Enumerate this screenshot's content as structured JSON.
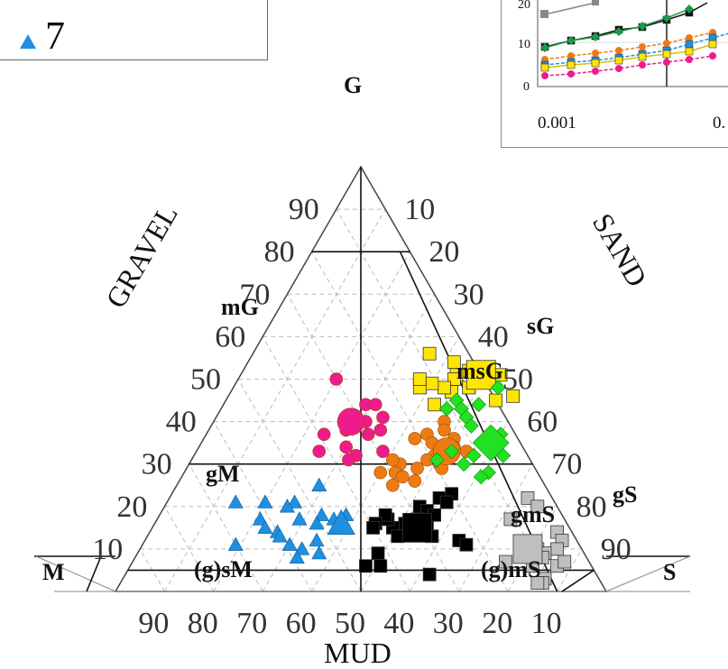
{
  "legend": {
    "label": "7",
    "marker_color": "#1f8fe0"
  },
  "inset": {
    "y_ticks": [
      "20",
      "10",
      "0"
    ],
    "x_ticks": [
      "0.001",
      "0."
    ]
  },
  "chart_data": {
    "type": "scatter",
    "subtype": "ternary (Folk sediment classification)",
    "axes": {
      "gravel": {
        "label": "GRAVEL",
        "ticks": [
          "10",
          "20",
          "30",
          "40",
          "50",
          "60",
          "70",
          "80",
          "90"
        ]
      },
      "sand": {
        "label": "SAND",
        "ticks": [
          "10",
          "20",
          "30",
          "40",
          "50",
          "60",
          "70",
          "80",
          "90"
        ]
      },
      "mud": {
        "label": "MUD",
        "ticks": [
          "90",
          "80",
          "70",
          "60",
          "50",
          "40",
          "30",
          "20",
          "10"
        ]
      }
    },
    "zones": [
      "G",
      "mG",
      "sG",
      "msG",
      "gM",
      "gS",
      "gmS",
      "(g)sM",
      "(g)mS",
      "M",
      "S"
    ],
    "grid": true,
    "colors": {
      "yellow": "#ffe600",
      "magenta": "#ee1b8c",
      "orange": "#ee7b12",
      "green": "#22e022",
      "black": "#000000",
      "blue": "#1f8fe0",
      "gray": "#bfbfbf"
    },
    "series": [
      {
        "marker": "square",
        "color": "yellow",
        "points": [
          [
            54,
            42,
            false
          ],
          [
            45,
            55,
            false
          ],
          [
            46,
            58,
            false
          ],
          [
            56,
            36,
            false
          ],
          [
            48,
            48,
            false
          ],
          [
            51,
            53,
            false
          ],
          [
            52,
            46,
            false
          ],
          [
            51,
            49,
            true
          ],
          [
            51,
            44,
            false
          ],
          [
            47,
            45,
            false
          ],
          [
            50,
            44,
            false
          ],
          [
            48,
            43,
            false
          ],
          [
            49,
            40,
            false
          ],
          [
            48,
            38,
            false
          ],
          [
            50,
            37,
            false
          ],
          [
            44,
            43,
            false
          ]
        ]
      },
      {
        "marker": "circle",
        "color": "magenta",
        "points": [
          [
            50,
            20,
            false
          ],
          [
            44,
            29,
            false
          ],
          [
            40,
            31,
            false
          ],
          [
            44,
            31,
            false
          ],
          [
            38,
            35,
            false
          ],
          [
            41,
            34,
            false
          ],
          [
            37,
            33,
            false
          ],
          [
            38,
            28,
            false
          ],
          [
            37,
            24,
            false
          ],
          [
            34,
            30,
            false
          ],
          [
            32,
            33,
            false
          ],
          [
            31,
            32,
            false
          ],
          [
            33,
            25,
            false
          ],
          [
            33,
            38,
            false
          ],
          [
            40,
            28,
            true
          ]
        ]
      },
      {
        "marker": "circle",
        "color": "orange",
        "points": [
          [
            40,
            47,
            false
          ],
          [
            38,
            48,
            false
          ],
          [
            36,
            51,
            false
          ],
          [
            37,
            45,
            false
          ],
          [
            36,
            43,
            false
          ],
          [
            35,
            47,
            false
          ],
          [
            34,
            52,
            false
          ],
          [
            33,
            55,
            false
          ],
          [
            32,
            49,
            false
          ],
          [
            30,
            51,
            false
          ],
          [
            31,
            48,
            false
          ],
          [
            29,
            52,
            false
          ],
          [
            29,
            47,
            false
          ],
          [
            30,
            43,
            false
          ],
          [
            31,
            41,
            false
          ],
          [
            28,
            43,
            false
          ],
          [
            28,
            40,
            false
          ],
          [
            27,
            45,
            false
          ],
          [
            26,
            48,
            false
          ],
          [
            25,
            44,
            false
          ],
          [
            33,
            51,
            true
          ]
        ]
      },
      {
        "marker": "diamond",
        "color": "green",
        "points": [
          [
            48,
            54,
            false
          ],
          [
            45,
            47,
            false
          ],
          [
            44,
            52,
            false
          ],
          [
            43,
            46,
            false
          ],
          [
            43,
            49,
            false
          ],
          [
            41,
            51,
            false
          ],
          [
            39,
            53,
            false
          ],
          [
            37,
            60,
            false
          ],
          [
            33,
            52,
            false
          ],
          [
            32,
            63,
            false
          ],
          [
            32,
            57,
            false
          ],
          [
            31,
            50,
            false
          ],
          [
            30,
            56,
            false
          ],
          [
            28,
            62,
            false
          ],
          [
            27,
            61,
            false
          ],
          [
            35,
            59,
            true
          ]
        ]
      },
      {
        "marker": "square",
        "color": "black",
        "points": [
          [
            23,
            57,
            false
          ],
          [
            22,
            55,
            false
          ],
          [
            21,
            57,
            false
          ],
          [
            20,
            52,
            false
          ],
          [
            19,
            54,
            false
          ],
          [
            18,
            56,
            false
          ],
          [
            17,
            53,
            false
          ],
          [
            16,
            51,
            false
          ],
          [
            15,
            49,
            false
          ],
          [
            15,
            56,
            false
          ],
          [
            13,
            58,
            false
          ],
          [
            13,
            51,
            false
          ],
          [
            12,
            64,
            false
          ],
          [
            11,
            66,
            false
          ],
          [
            17,
            47,
            false
          ],
          [
            18,
            46,
            false
          ],
          [
            16,
            45,
            false
          ],
          [
            15,
            45,
            false
          ],
          [
            9,
            49,
            false
          ],
          [
            6,
            48,
            false
          ],
          [
            6,
            51,
            false
          ],
          [
            4,
            62,
            false
          ],
          [
            15,
            54,
            true
          ]
        ]
      },
      {
        "marker": "triangle",
        "color": "blue",
        "points": [
          [
            25,
            29,
            false
          ],
          [
            21,
            26,
            false
          ],
          [
            21,
            20,
            false
          ],
          [
            20,
            25,
            false
          ],
          [
            18,
            33,
            false
          ],
          [
            17,
            29,
            false
          ],
          [
            17,
            21,
            false
          ],
          [
            16,
            33,
            false
          ],
          [
            15,
            23,
            false
          ],
          [
            14,
            26,
            false
          ],
          [
            12,
            35,
            false
          ],
          [
            10,
            33,
            false
          ],
          [
            11,
            30,
            false
          ],
          [
            9,
            37,
            false
          ],
          [
            8,
            33,
            false
          ],
          [
            11,
            19,
            false
          ],
          [
            13,
            27,
            false
          ],
          [
            18,
            38,
            false
          ],
          [
            21,
            14,
            false
          ],
          [
            17,
            36,
            false
          ],
          [
            16,
            38,
            true
          ]
        ]
      },
      {
        "marker": "square",
        "color": "gray",
        "points": [
          [
            22,
            73,
            false
          ],
          [
            20,
            76,
            false
          ],
          [
            17,
            72,
            false
          ],
          [
            14,
            83,
            false
          ],
          [
            12,
            85,
            false
          ],
          [
            10,
            81,
            false
          ],
          [
            10,
            85,
            false
          ],
          [
            9,
            83,
            false
          ],
          [
            8,
            83,
            false
          ],
          [
            6,
            87,
            false
          ],
          [
            7,
            88,
            false
          ],
          [
            7,
            76,
            false
          ],
          [
            6,
            82,
            false
          ],
          [
            3,
            86,
            false
          ],
          [
            2,
            86,
            false
          ],
          [
            2,
            85,
            false
          ],
          [
            10,
            79,
            true
          ]
        ]
      }
    ]
  }
}
